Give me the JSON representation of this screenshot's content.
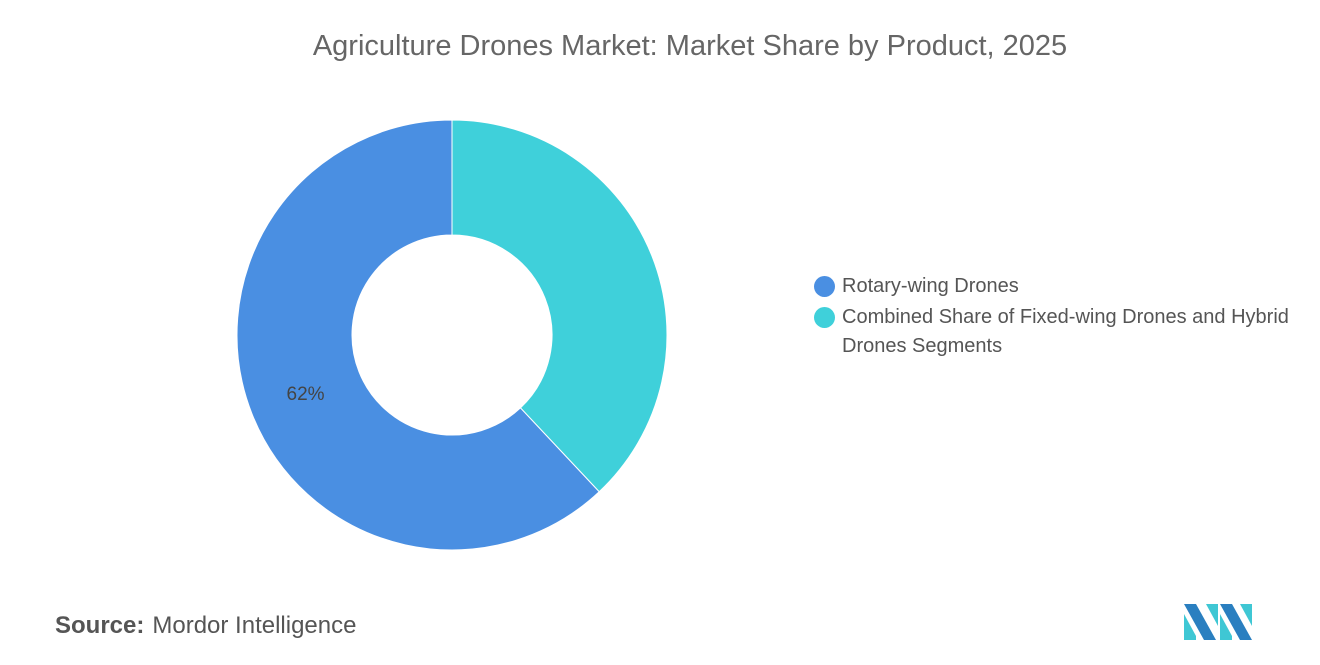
{
  "chart_data": {
    "type": "pie",
    "variant": "donut",
    "title": "Agriculture Drones Market: Market Share by Product, 2025",
    "categories": [
      "Rotary-wing Drones",
      "Combined Share of Fixed-wing Drones and Hybrid Drones Segments"
    ],
    "values": [
      62,
      38
    ],
    "unit": "%",
    "data_labels": [
      "62%",
      ""
    ],
    "colors": [
      "#4a8fe2",
      "#3fd0da"
    ],
    "legend_position": "right"
  },
  "source": {
    "label": "Source:",
    "value": "Mordor Intelligence"
  },
  "logo": {
    "name": "mordor-intelligence-logo",
    "colors": [
      "#2a7fc0",
      "#3fc7d4"
    ]
  }
}
